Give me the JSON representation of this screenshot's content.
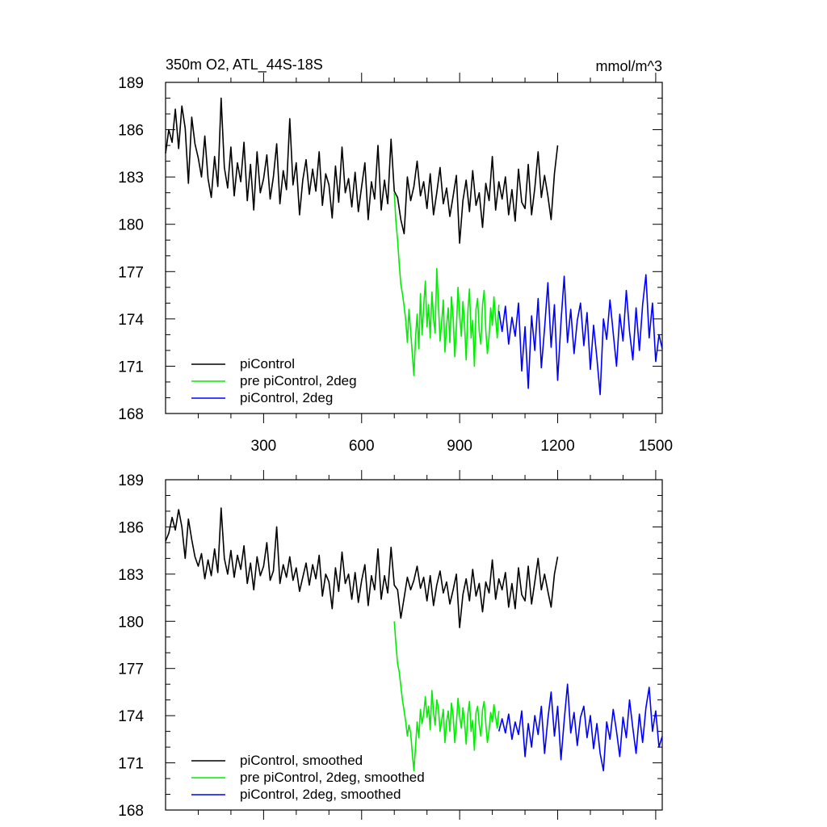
{
  "chart_data": [
    {
      "type": "line",
      "title": "350m O2, ATL_44S-18S",
      "units": "mmol/m^3",
      "xlim": [
        0,
        1520
      ],
      "ylim": [
        168,
        189
      ],
      "yticks": [
        168,
        171,
        174,
        177,
        180,
        183,
        186,
        189
      ],
      "xticks": [
        300,
        600,
        900,
        1200,
        1500
      ],
      "show_x_tick_labels": true,
      "grid": false,
      "legend_position": "bottom-left",
      "series": [
        {
          "name": "piControl",
          "color": "#000000",
          "x": [
            0,
            10,
            20,
            30,
            40,
            50,
            60,
            70,
            80,
            90,
            100,
            110,
            120,
            130,
            140,
            150,
            160,
            170,
            180,
            190,
            200,
            210,
            220,
            230,
            240,
            250,
            260,
            270,
            280,
            290,
            300,
            310,
            320,
            330,
            340,
            350,
            360,
            370,
            380,
            390,
            400,
            410,
            420,
            430,
            440,
            450,
            460,
            470,
            480,
            490,
            500,
            510,
            520,
            530,
            540,
            550,
            560,
            570,
            580,
            590,
            600,
            610,
            620,
            630,
            640,
            650,
            660,
            670,
            680,
            690,
            700,
            710,
            720,
            730,
            740,
            750,
            760,
            770,
            780,
            790,
            800,
            810,
            820,
            830,
            840,
            850,
            860,
            870,
            880,
            890,
            900,
            910,
            920,
            930,
            940,
            950,
            960,
            970,
            980,
            990,
            1000,
            1010,
            1020,
            1030,
            1040,
            1050,
            1060,
            1070,
            1080,
            1090,
            1100,
            1110,
            1120,
            1130,
            1140,
            1150,
            1160,
            1170,
            1180,
            1190,
            1200
          ],
          "y": [
            184.5,
            186.0,
            185.2,
            187.3,
            184.8,
            187.5,
            186.1,
            182.6,
            186.8,
            185.1,
            184.2,
            183.0,
            185.6,
            182.9,
            181.7,
            184.3,
            182.4,
            188.0,
            183.6,
            182.3,
            184.9,
            181.8,
            183.9,
            182.7,
            185.2,
            181.5,
            183.8,
            180.9,
            184.6,
            182.0,
            182.9,
            184.4,
            181.6,
            183.0,
            185.1,
            181.3,
            183.4,
            182.2,
            186.7,
            182.5,
            183.9,
            180.6,
            182.8,
            184.1,
            181.9,
            183.5,
            182.1,
            184.6,
            181.2,
            183.2,
            182.5,
            180.4,
            183.7,
            181.4,
            184.9,
            182.0,
            182.9,
            181.1,
            183.3,
            180.8,
            182.4,
            183.9,
            180.3,
            182.7,
            181.6,
            185.0,
            180.9,
            182.8,
            181.3,
            185.4,
            182.1,
            181.7,
            180.3,
            179.4,
            183.0,
            181.5,
            182.4,
            184.0,
            181.8,
            182.7,
            181.0,
            183.2,
            180.6,
            182.0,
            183.6,
            181.3,
            182.3,
            180.5,
            181.8,
            183.1,
            178.8,
            181.5,
            182.8,
            180.8,
            183.4,
            181.2,
            182.0,
            179.8,
            182.6,
            181.5,
            184.3,
            180.9,
            182.7,
            181.6,
            183.0,
            180.6,
            182.2,
            180.2,
            183.5,
            181.4,
            181.0,
            183.8,
            180.6,
            182.3,
            184.6,
            181.7,
            183.1,
            181.8,
            180.3,
            183.2,
            185.0
          ]
        },
        {
          "name": "pre piControl, 2deg",
          "color": "#00ee00",
          "x": [
            700,
            705,
            710,
            715,
            720,
            725,
            730,
            735,
            740,
            745,
            750,
            755,
            760,
            765,
            770,
            775,
            780,
            785,
            790,
            795,
            800,
            805,
            810,
            815,
            820,
            825,
            830,
            835,
            840,
            845,
            850,
            855,
            860,
            865,
            870,
            875,
            880,
            885,
            890,
            895,
            900,
            905,
            910,
            915,
            920,
            925,
            930,
            935,
            940,
            945,
            950,
            955,
            960,
            965,
            970,
            975,
            980,
            985,
            990,
            995,
            1000,
            1005,
            1010,
            1015,
            1020
          ],
          "y": [
            182.0,
            180.2,
            179.0,
            177.5,
            176.2,
            175.6,
            174.8,
            173.9,
            172.5,
            174.6,
            173.2,
            171.8,
            170.4,
            172.8,
            174.3,
            172.1,
            175.6,
            173.0,
            174.8,
            176.4,
            173.5,
            174.9,
            172.8,
            175.7,
            174.0,
            173.1,
            177.2,
            175.0,
            172.6,
            173.8,
            175.2,
            171.9,
            173.6,
            174.7,
            172.5,
            175.4,
            174.1,
            171.6,
            173.4,
            176.0,
            174.3,
            172.9,
            175.1,
            173.7,
            171.4,
            174.5,
            175.9,
            172.8,
            173.9,
            171.0,
            174.6,
            175.3,
            173.2,
            172.4,
            174.9,
            175.8,
            173.3,
            171.8,
            172.9,
            174.7,
            173.6,
            175.4,
            174.0,
            172.8,
            174.9
          ]
        },
        {
          "name": "piControl, 2deg",
          "color": "#0000ff",
          "x": [
            1020,
            1030,
            1040,
            1050,
            1060,
            1070,
            1080,
            1090,
            1100,
            1110,
            1120,
            1130,
            1140,
            1150,
            1160,
            1170,
            1180,
            1190,
            1200,
            1210,
            1220,
            1230,
            1240,
            1250,
            1260,
            1270,
            1280,
            1290,
            1300,
            1310,
            1320,
            1330,
            1340,
            1350,
            1360,
            1370,
            1380,
            1390,
            1400,
            1410,
            1420,
            1430,
            1440,
            1450,
            1460,
            1470,
            1480,
            1490,
            1500,
            1510,
            1520
          ],
          "y": [
            174.5,
            173.2,
            174.8,
            172.4,
            174.1,
            172.9,
            175.0,
            170.7,
            173.5,
            169.6,
            174.2,
            172.0,
            175.3,
            170.9,
            173.4,
            176.3,
            172.2,
            174.9,
            170.1,
            173.8,
            176.7,
            172.5,
            174.6,
            171.8,
            173.9,
            175.0,
            172.3,
            174.4,
            170.8,
            173.6,
            171.5,
            169.2,
            174.0,
            172.7,
            175.2,
            173.1,
            171.0,
            174.3,
            172.6,
            175.8,
            173.2,
            171.4,
            174.7,
            172.0,
            174.9,
            176.8,
            172.8,
            175.0,
            171.3,
            173.0,
            172.1
          ]
        }
      ],
      "legend": [
        "piControl",
        "pre piControl, 2deg",
        "piControl, 2deg"
      ]
    },
    {
      "type": "line",
      "title": "",
      "xlim": [
        0,
        1520
      ],
      "ylim": [
        168,
        189
      ],
      "yticks": [
        168,
        171,
        174,
        177,
        180,
        183,
        186,
        189
      ],
      "xticks": [
        300,
        600,
        900,
        1200,
        1500
      ],
      "show_x_tick_labels": false,
      "grid": false,
      "legend_position": "bottom-left",
      "series": [
        {
          "name": "piControl, smoothed",
          "color": "#000000",
          "x": [
            0,
            10,
            20,
            30,
            40,
            50,
            60,
            70,
            80,
            90,
            100,
            110,
            120,
            130,
            140,
            150,
            160,
            170,
            180,
            190,
            200,
            210,
            220,
            230,
            240,
            250,
            260,
            270,
            280,
            290,
            300,
            310,
            320,
            330,
            340,
            350,
            360,
            370,
            380,
            390,
            400,
            410,
            420,
            430,
            440,
            450,
            460,
            470,
            480,
            490,
            500,
            510,
            520,
            530,
            540,
            550,
            560,
            570,
            580,
            590,
            600,
            610,
            620,
            630,
            640,
            650,
            660,
            670,
            680,
            690,
            700,
            710,
            720,
            730,
            740,
            750,
            760,
            770,
            780,
            790,
            800,
            810,
            820,
            830,
            840,
            850,
            860,
            870,
            880,
            890,
            900,
            910,
            920,
            930,
            940,
            950,
            960,
            970,
            980,
            990,
            1000,
            1010,
            1020,
            1030,
            1040,
            1050,
            1060,
            1070,
            1080,
            1090,
            1100,
            1110,
            1120,
            1130,
            1140,
            1150,
            1160,
            1170,
            1180,
            1190,
            1200
          ],
          "y": [
            185.1,
            185.6,
            186.6,
            185.8,
            187.1,
            186.0,
            184.0,
            186.5,
            185.2,
            184.1,
            183.5,
            184.3,
            182.7,
            183.9,
            182.9,
            184.6,
            183.1,
            187.2,
            184.0,
            183.0,
            184.5,
            182.8,
            184.2,
            183.3,
            184.8,
            182.4,
            183.7,
            182.0,
            184.1,
            182.9,
            183.5,
            185.0,
            182.6,
            183.2,
            186.0,
            182.4,
            183.6,
            182.8,
            184.1,
            182.6,
            183.4,
            181.9,
            182.8,
            183.7,
            182.3,
            183.6,
            182.7,
            184.2,
            181.6,
            183.0,
            182.5,
            180.8,
            183.4,
            181.9,
            184.4,
            182.4,
            183.0,
            181.4,
            183.1,
            181.2,
            182.6,
            183.6,
            181.0,
            182.9,
            182.0,
            184.6,
            181.4,
            182.9,
            181.8,
            184.7,
            182.3,
            182.0,
            180.2,
            181.5,
            182.8,
            182.0,
            182.6,
            183.5,
            182.1,
            182.8,
            181.3,
            182.9,
            181.0,
            182.3,
            183.2,
            181.8,
            182.5,
            181.1,
            182.0,
            183.0,
            179.6,
            181.7,
            182.7,
            181.3,
            183.3,
            181.6,
            182.4,
            180.6,
            182.5,
            181.8,
            183.9,
            181.4,
            182.7,
            182.0,
            183.1,
            180.9,
            182.4,
            180.8,
            183.4,
            181.7,
            181.3,
            183.5,
            181.1,
            182.5,
            184.0,
            182.0,
            183.0,
            181.9,
            180.9,
            183.0,
            184.1
          ]
        },
        {
          "name": "pre piControl, 2deg, smoothed",
          "color": "#00ee00",
          "x": [
            700,
            705,
            710,
            715,
            720,
            725,
            730,
            735,
            740,
            745,
            750,
            755,
            760,
            765,
            770,
            775,
            780,
            785,
            790,
            795,
            800,
            805,
            810,
            815,
            820,
            825,
            830,
            835,
            840,
            845,
            850,
            855,
            860,
            865,
            870,
            875,
            880,
            885,
            890,
            895,
            900,
            905,
            910,
            915,
            920,
            925,
            930,
            935,
            940,
            945,
            950,
            955,
            960,
            965,
            970,
            975,
            980,
            985,
            990,
            995,
            1000,
            1005,
            1010,
            1015,
            1020
          ],
          "y": [
            180.0,
            178.6,
            177.3,
            176.8,
            175.9,
            175.0,
            174.3,
            173.6,
            172.7,
            173.4,
            172.9,
            171.6,
            170.5,
            172.0,
            173.6,
            172.6,
            174.4,
            173.5,
            174.1,
            175.2,
            173.9,
            174.6,
            173.1,
            175.6,
            174.2,
            173.4,
            175.0,
            174.5,
            173.0,
            173.7,
            174.4,
            172.3,
            173.6,
            174.3,
            173.0,
            174.8,
            174.0,
            172.3,
            173.5,
            175.1,
            174.0,
            173.2,
            174.5,
            173.6,
            172.2,
            174.1,
            174.9,
            173.0,
            173.7,
            171.8,
            174.2,
            174.6,
            173.4,
            172.7,
            174.4,
            174.9,
            173.5,
            172.3,
            173.1,
            174.2,
            173.6,
            174.7,
            173.9,
            173.2,
            174.3
          ]
        },
        {
          "name": "piControl, 2deg, smoothed",
          "color": "#0000ff",
          "x": [
            1020,
            1030,
            1040,
            1050,
            1060,
            1070,
            1080,
            1090,
            1100,
            1110,
            1120,
            1130,
            1140,
            1150,
            1160,
            1170,
            1180,
            1190,
            1200,
            1210,
            1220,
            1230,
            1240,
            1250,
            1260,
            1270,
            1280,
            1290,
            1300,
            1310,
            1320,
            1330,
            1340,
            1350,
            1360,
            1370,
            1380,
            1390,
            1400,
            1410,
            1420,
            1430,
            1440,
            1450,
            1460,
            1470,
            1480,
            1490,
            1500,
            1510,
            1520
          ],
          "y": [
            173.0,
            173.8,
            172.9,
            174.1,
            172.5,
            173.6,
            172.8,
            174.3,
            171.4,
            173.5,
            172.0,
            174.0,
            172.8,
            174.6,
            171.6,
            173.8,
            175.5,
            172.7,
            174.6,
            171.2,
            173.7,
            176.0,
            172.9,
            174.2,
            172.1,
            173.9,
            174.6,
            172.6,
            174.0,
            171.9,
            173.5,
            171.6,
            170.5,
            173.6,
            172.5,
            174.4,
            173.0,
            171.4,
            173.9,
            172.6,
            175.0,
            173.2,
            171.6,
            174.1,
            172.3,
            174.5,
            175.8,
            173.0,
            174.3,
            172.0,
            172.7
          ]
        }
      ],
      "legend": [
        "piControl, smoothed",
        "pre piControl, 2deg, smoothed",
        "piControl, 2deg, smoothed"
      ]
    }
  ]
}
